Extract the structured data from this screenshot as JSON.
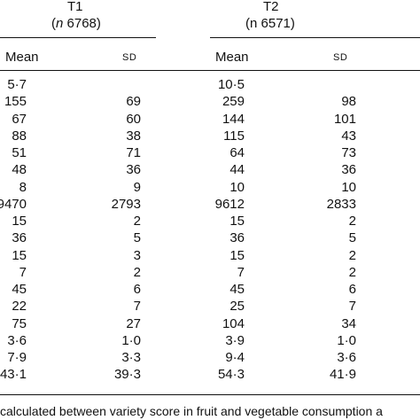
{
  "groups": [
    {
      "title": "T1",
      "n_prefix": "n",
      "n_value": "6768"
    },
    {
      "title": "T2",
      "n_prefix": "n",
      "n_value": "6571"
    }
  ],
  "col_headers": {
    "mean": "Mean",
    "sd": "SD"
  },
  "rows": [
    [
      "5·7",
      "",
      "10·5",
      ""
    ],
    [
      "155",
      "69",
      "259",
      "98"
    ],
    [
      "67",
      "60",
      "144",
      "101"
    ],
    [
      "88",
      "38",
      "115",
      "43"
    ],
    [
      "51",
      "71",
      "64",
      "73"
    ],
    [
      "48",
      "36",
      "44",
      "36"
    ],
    [
      "8",
      "9",
      "10",
      "10"
    ],
    [
      "9470",
      "2793",
      "9612",
      "2833"
    ],
    [
      "15",
      "2",
      "15",
      "2"
    ],
    [
      "36",
      "5",
      "36",
      "5"
    ],
    [
      "15",
      "3",
      "15",
      "2"
    ],
    [
      "7",
      "2",
      "7",
      "2"
    ],
    [
      "45",
      "6",
      "45",
      "6"
    ],
    [
      "22",
      "7",
      "25",
      "7"
    ],
    [
      "75",
      "27",
      "104",
      "34"
    ],
    [
      "3·6",
      "1·0",
      "3·9",
      "1·0"
    ],
    [
      "7·9",
      "3·3",
      "9·4",
      "3·6"
    ],
    [
      "43·1",
      "39·3",
      "54·3",
      "41·9"
    ]
  ],
  "footnote": "calculated between variety score in fruit and vegetable consumption a"
}
